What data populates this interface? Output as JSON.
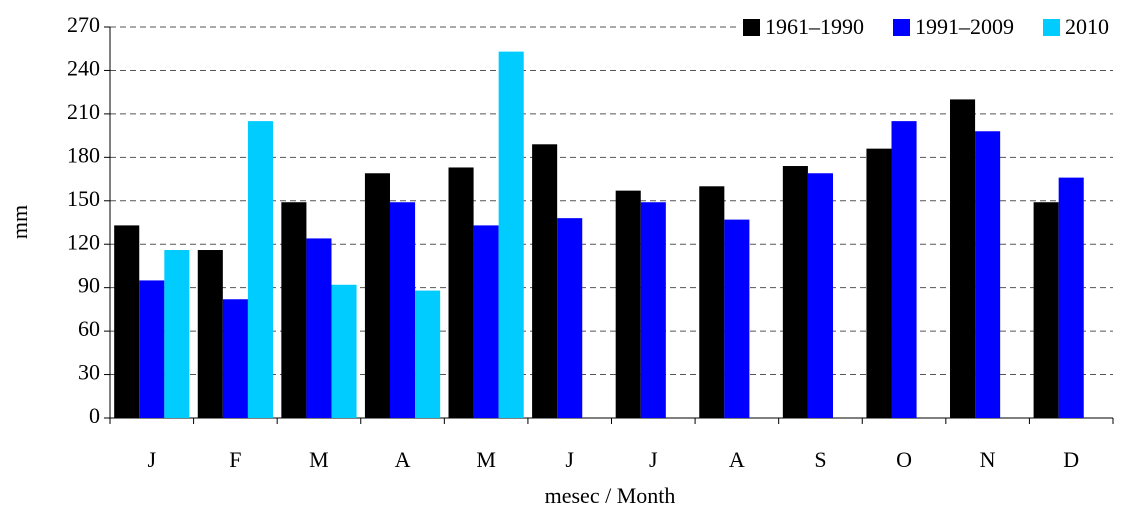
{
  "chart_data": {
    "type": "bar",
    "y_label": "mm",
    "x_label": "mesec / Month",
    "categories": [
      "J",
      "F",
      "M",
      "A",
      "M",
      "J",
      "J",
      "A",
      "S",
      "O",
      "N",
      "D"
    ],
    "series": [
      {
        "name": "1961–1990",
        "color": "#000000",
        "values": [
          133,
          116,
          149,
          169,
          173,
          189,
          157,
          160,
          174,
          186,
          220,
          149
        ]
      },
      {
        "name": "1991–2009",
        "color": "#0000ff",
        "values": [
          95,
          82,
          124,
          149,
          133,
          138,
          149,
          137,
          169,
          205,
          198,
          166
        ]
      },
      {
        "name": "2010",
        "color": "#00ccff",
        "values": [
          116,
          205,
          92,
          88,
          253,
          null,
          null,
          null,
          null,
          null,
          null,
          null
        ]
      }
    ],
    "ylim": [
      0,
      270
    ],
    "yticks": [
      0,
      30,
      60,
      90,
      120,
      150,
      180,
      210,
      240,
      270
    ],
    "grid": true,
    "legend": "upper right"
  }
}
